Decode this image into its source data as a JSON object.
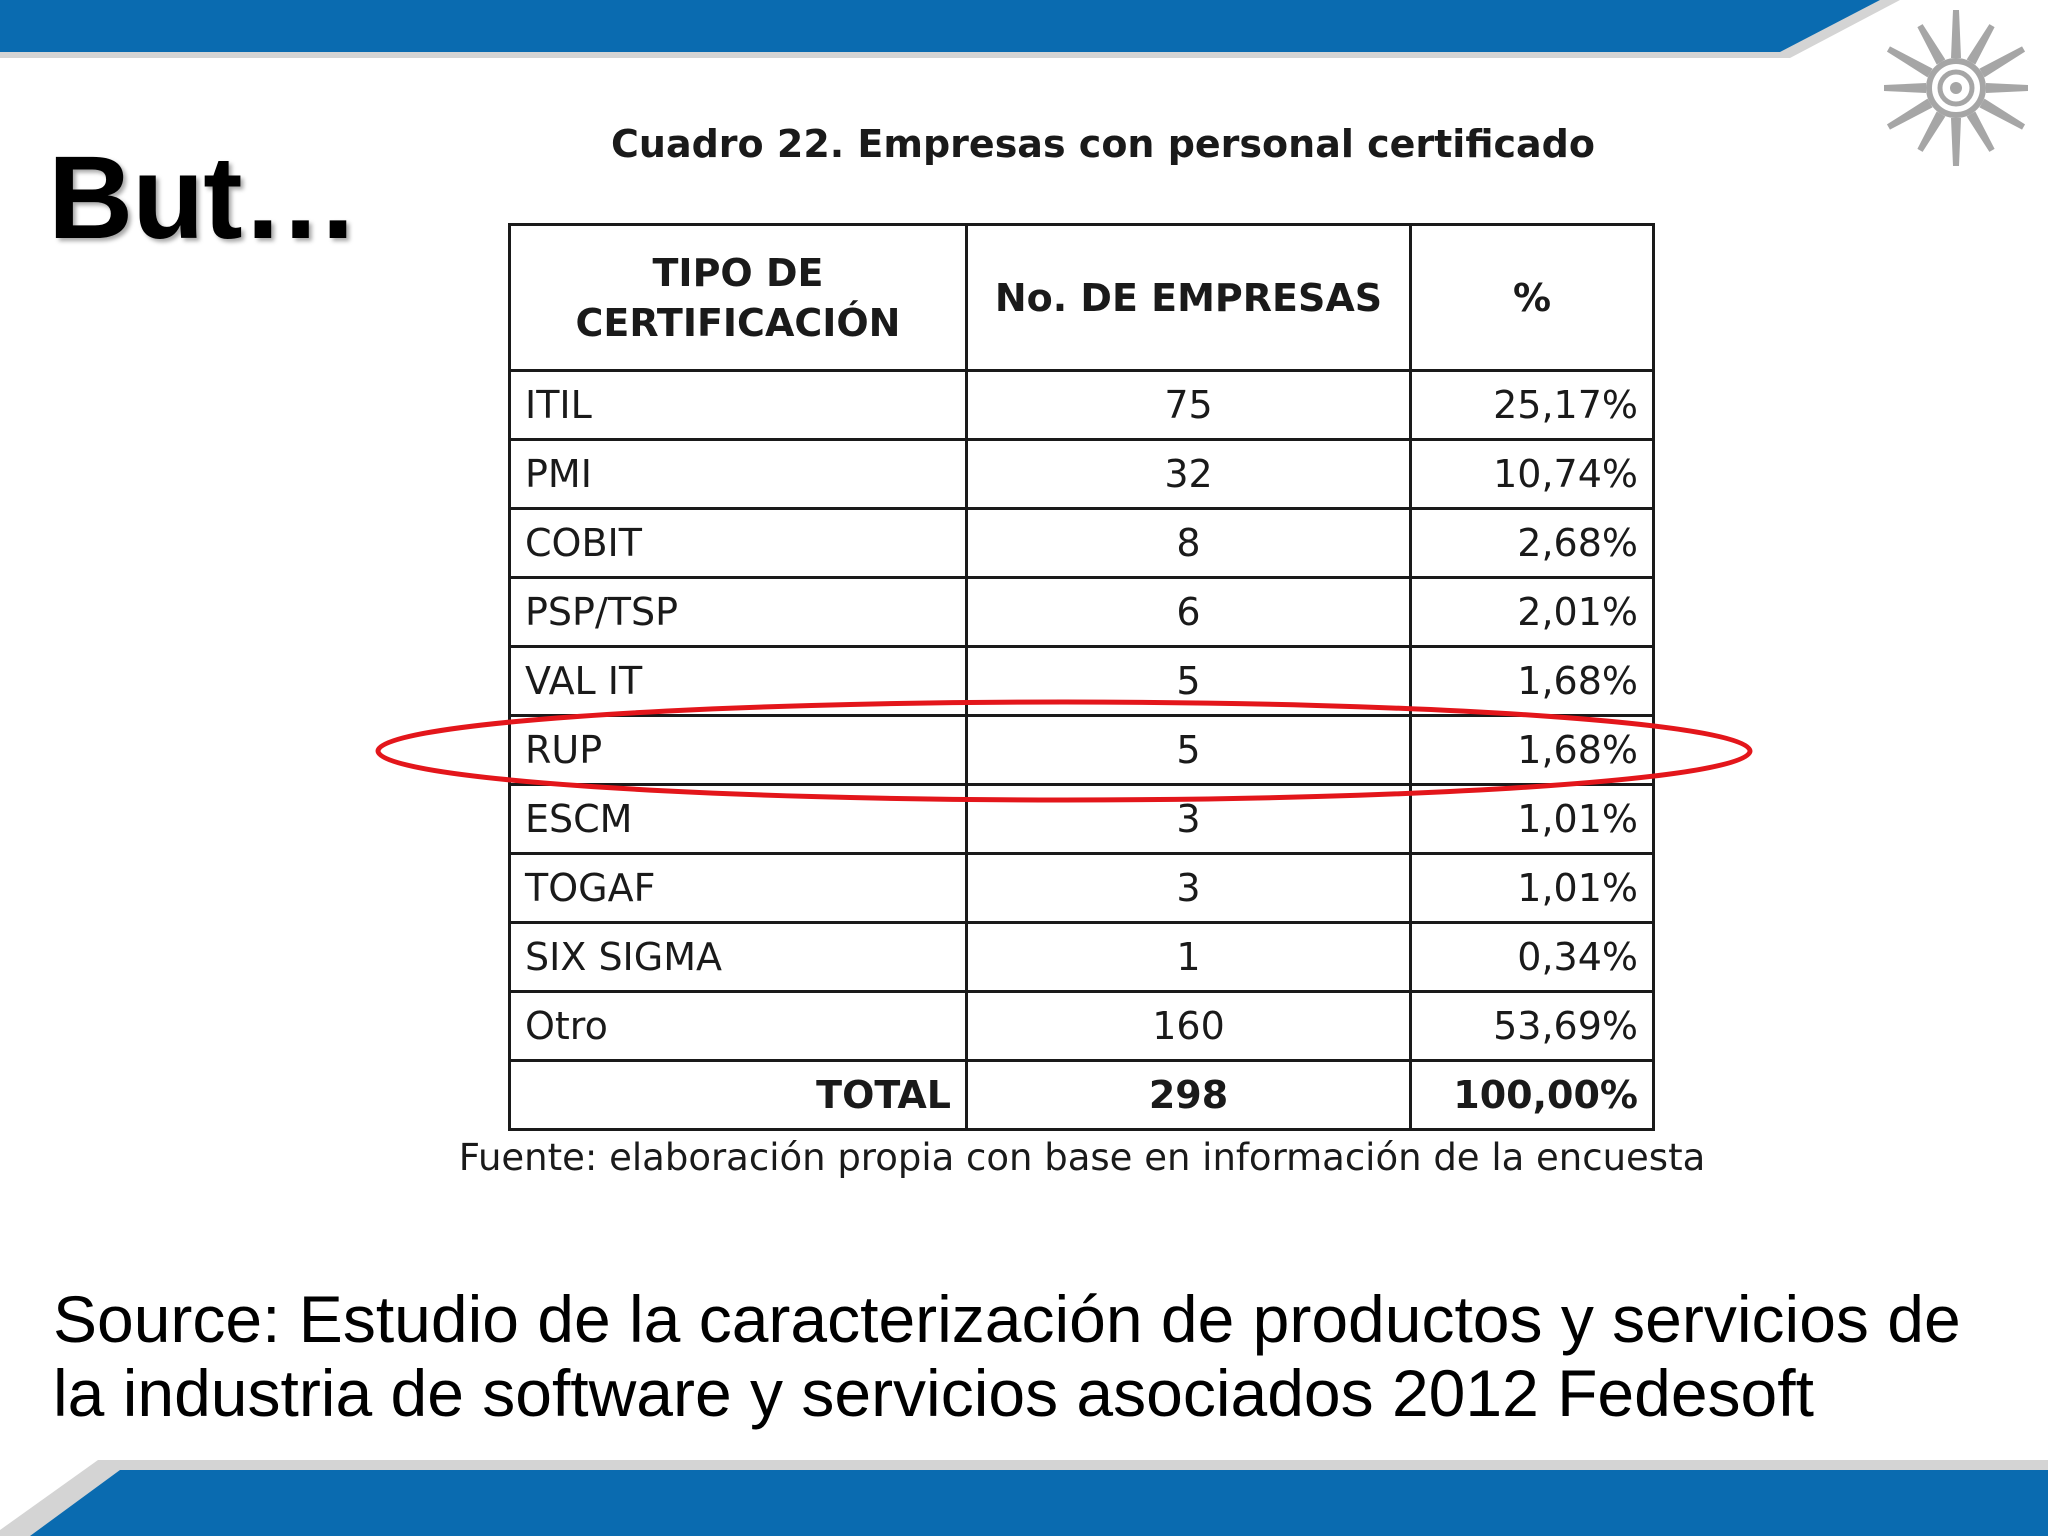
{
  "slide": {
    "title": "But…",
    "colors": {
      "bar_blue": "#0a6bb0",
      "bar_shadow": "#d4d4d4",
      "highlight": "#e3161b",
      "logo_gray": "#a6a6a6"
    }
  },
  "logo": {
    "icon": "sun-spiral-logo"
  },
  "table": {
    "caption": "Cuadro 22. Empresas con personal certificado",
    "headers": {
      "tipo_line1": "TIPO DE",
      "tipo_line2": "CERTIFICACIÓN",
      "num": "No. DE EMPRESAS",
      "pct": "%"
    },
    "rows": [
      {
        "tipo": "ITIL",
        "num": "75",
        "pct": "25,17%"
      },
      {
        "tipo": "PMI",
        "num": "32",
        "pct": "10,74%"
      },
      {
        "tipo": "COBIT",
        "num": "8",
        "pct": "2,68%"
      },
      {
        "tipo": "PSP/TSP",
        "num": "6",
        "pct": "2,01%"
      },
      {
        "tipo": "VAL IT",
        "num": "5",
        "pct": "1,68%"
      },
      {
        "tipo": "RUP",
        "num": "5",
        "pct": "1,68%"
      },
      {
        "tipo": "ESCM",
        "num": "3",
        "pct": "1,01%"
      },
      {
        "tipo": "TOGAF",
        "num": "3",
        "pct": "1,01%"
      },
      {
        "tipo": "SIX SIGMA",
        "num": "1",
        "pct": "0,34%"
      },
      {
        "tipo": "Otro",
        "num": "160",
        "pct": "53,69%"
      }
    ],
    "total": {
      "tipo": "TOTAL",
      "num": "298",
      "pct": "100,00%"
    },
    "highlighted_row": "RUP",
    "source": "Fuente: elaboración propia con base en información de la encuesta"
  },
  "source": {
    "line1": "Source: Estudio de la caracterización de productos y servicios de",
    "line2": "la industria de software y servicios asociados 2012 Fedesoft"
  }
}
